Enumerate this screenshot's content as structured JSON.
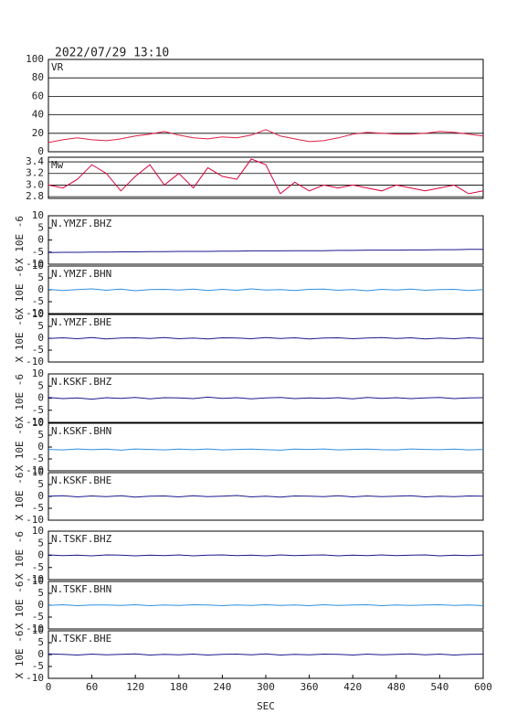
{
  "chart_data": [
    {
      "type": "line",
      "title": "2022/07/29 13:10",
      "label": "VR",
      "color": "#e0204a",
      "grid": true,
      "xlim": [
        0,
        600
      ],
      "ylim": [
        0,
        100
      ],
      "yticks": [
        0,
        20,
        40,
        60,
        80,
        100
      ],
      "x": [
        0,
        20,
        40,
        60,
        80,
        100,
        120,
        140,
        160,
        180,
        200,
        220,
        240,
        260,
        280,
        300,
        320,
        340,
        360,
        380,
        400,
        420,
        440,
        460,
        480,
        500,
        520,
        540,
        560,
        580,
        600
      ],
      "values": [
        10,
        13,
        15,
        13,
        12,
        14,
        17,
        19,
        22,
        18,
        15,
        14,
        16,
        15,
        18,
        24,
        17,
        14,
        11,
        12,
        15,
        19,
        21,
        20,
        19,
        19,
        20,
        22,
        21,
        19,
        17
      ]
    },
    {
      "type": "line",
      "label": "Mw",
      "color": "#d8003c",
      "grid": true,
      "xlim": [
        0,
        600
      ],
      "ylim": [
        2.77,
        3.48
      ],
      "yticks": [
        2.8,
        {
          "value": 3,
          "label": "3.0"
        },
        3.2,
        3.4
      ],
      "x": [
        0,
        20,
        40,
        60,
        80,
        100,
        120,
        140,
        160,
        180,
        200,
        220,
        240,
        260,
        280,
        300,
        320,
        340,
        360,
        380,
        400,
        420,
        440,
        460,
        480,
        500,
        520,
        540,
        560,
        580,
        600
      ],
      "values": [
        3.0,
        2.95,
        3.1,
        3.35,
        3.2,
        2.9,
        3.15,
        3.35,
        3.0,
        3.2,
        2.95,
        3.3,
        3.15,
        3.1,
        3.45,
        3.35,
        2.85,
        3.05,
        2.9,
        3.0,
        2.95,
        3.0,
        2.95,
        2.9,
        3.0,
        2.95,
        2.9,
        2.95,
        3.0,
        2.85,
        2.9
      ]
    },
    {
      "type": "line",
      "label": "N.YMZF.BHZ",
      "ylabel": "X 10E -6",
      "color": "#1a1a8c",
      "grid": false,
      "xlim": [
        0,
        600
      ],
      "ylim": [
        -10,
        10
      ],
      "yticks": [
        -10,
        -5,
        0,
        5,
        10
      ],
      "x": [
        0,
        20,
        40,
        60,
        80,
        100,
        120,
        140,
        160,
        180,
        200,
        220,
        240,
        260,
        280,
        300,
        320,
        340,
        360,
        380,
        400,
        420,
        440,
        460,
        480,
        500,
        520,
        540,
        560,
        580,
        600
      ],
      "values": [
        -5.2,
        -5.1,
        -5.1,
        -5.0,
        -5.0,
        -4.9,
        -4.9,
        -4.8,
        -4.8,
        -4.7,
        -4.7,
        -4.7,
        -4.6,
        -4.6,
        -4.5,
        -4.5,
        -4.5,
        -4.4,
        -4.4,
        -4.4,
        -4.3,
        -4.3,
        -4.2,
        -4.2,
        -4.2,
        -4.1,
        -4.1,
        -4.0,
        -4.0,
        -3.9,
        -3.9
      ]
    },
    {
      "type": "line",
      "label": "N.YMZF.BHN",
      "ylabel": "X 10E -6",
      "color": "#3090e0",
      "grid": false,
      "xlim": [
        0,
        600
      ],
      "ylim": [
        -10,
        10
      ],
      "yticks": [
        -10,
        -5,
        0,
        5,
        10
      ],
      "x": [
        0,
        20,
        40,
        60,
        80,
        100,
        120,
        140,
        160,
        180,
        200,
        220,
        240,
        260,
        280,
        300,
        320,
        340,
        360,
        380,
        400,
        420,
        440,
        460,
        480,
        500,
        520,
        540,
        560,
        580,
        600
      ],
      "values": [
        0.2,
        -0.3,
        0.1,
        0.4,
        -0.2,
        0.3,
        -0.4,
        0.1,
        0.2,
        -0.1,
        0.3,
        -0.3,
        0.2,
        -0.2,
        0.4,
        -0.1,
        0.1,
        -0.3,
        0.2,
        0.3,
        -0.2,
        0.1,
        -0.4,
        0.2,
        -0.1,
        0.3,
        -0.2,
        0.1,
        0.2,
        -0.3,
        0.1
      ]
    },
    {
      "type": "line",
      "label": "N.YMZF.BHE",
      "ylabel": "X 10E -6",
      "color": "#1a1a8c",
      "grid": false,
      "xlim": [
        0,
        600
      ],
      "ylim": [
        -10,
        10
      ],
      "yticks": [
        -10,
        -5,
        0,
        5,
        10
      ],
      "x": [
        0,
        20,
        40,
        60,
        80,
        100,
        120,
        140,
        160,
        180,
        200,
        220,
        240,
        260,
        280,
        300,
        320,
        340,
        360,
        380,
        400,
        420,
        440,
        460,
        480,
        500,
        520,
        540,
        560,
        580,
        600
      ],
      "values": [
        -0.1,
        0.2,
        -0.2,
        0.3,
        -0.3,
        0.1,
        0.2,
        -0.1,
        0.3,
        -0.2,
        0.1,
        -0.3,
        0.2,
        0.1,
        -0.2,
        0.3,
        -0.1,
        0.2,
        -0.3,
        0.1,
        0.2,
        -0.2,
        0.1,
        0.3,
        -0.1,
        0.2,
        -0.3,
        0.1,
        -0.2,
        0.2,
        -0.1
      ]
    },
    {
      "type": "line",
      "label": "N.KSKF.BHZ",
      "ylabel": "X 10E -6",
      "color": "#1a1a8c",
      "grid": false,
      "xlim": [
        0,
        600
      ],
      "ylim": [
        -10,
        10
      ],
      "yticks": [
        -10,
        -5,
        0,
        5,
        10
      ],
      "x": [
        0,
        20,
        40,
        60,
        80,
        100,
        120,
        140,
        160,
        180,
        200,
        220,
        240,
        260,
        280,
        300,
        320,
        340,
        360,
        380,
        400,
        420,
        440,
        460,
        480,
        500,
        520,
        540,
        560,
        580,
        600
      ],
      "values": [
        0.3,
        -0.2,
        0.1,
        -0.4,
        0.2,
        -0.1,
        0.3,
        -0.3,
        0.2,
        0.1,
        -0.2,
        0.4,
        -0.1,
        0.2,
        -0.3,
        0.1,
        0.3,
        -0.2,
        0.1,
        -0.1,
        0.2,
        -0.3,
        0.3,
        -0.1,
        0.2,
        -0.2,
        0.1,
        0.3,
        -0.2,
        0.1,
        0.2
      ]
    },
    {
      "type": "line",
      "label": "N.KSKF.BHN",
      "ylabel": "X 10E -6",
      "color": "#3090e0",
      "grid": false,
      "xlim": [
        0,
        600
      ],
      "ylim": [
        -10,
        10
      ],
      "yticks": [
        -10,
        -5,
        0,
        5,
        10
      ],
      "x": [
        0,
        20,
        40,
        60,
        80,
        100,
        120,
        140,
        160,
        180,
        200,
        220,
        240,
        260,
        280,
        300,
        320,
        340,
        360,
        380,
        400,
        420,
        440,
        460,
        480,
        500,
        520,
        540,
        560,
        580,
        600
      ],
      "values": [
        -1.0,
        -1.2,
        -0.8,
        -1.1,
        -0.9,
        -1.3,
        -0.8,
        -1.0,
        -1.2,
        -0.9,
        -1.1,
        -0.8,
        -1.2,
        -1.0,
        -0.9,
        -1.1,
        -1.3,
        -0.9,
        -1.0,
        -0.8,
        -1.2,
        -1.0,
        -0.9,
        -1.1,
        -1.2,
        -0.8,
        -1.0,
        -1.1,
        -0.9,
        -1.2,
        -1.0
      ]
    },
    {
      "type": "line",
      "label": "N.KSKF.BHE",
      "ylabel": "X 10E -6",
      "color": "#1a1a8c",
      "grid": false,
      "xlim": [
        0,
        600
      ],
      "ylim": [
        -10,
        10
      ],
      "yticks": [
        -10,
        -5,
        0,
        5,
        10
      ],
      "x": [
        0,
        20,
        40,
        60,
        80,
        100,
        120,
        140,
        160,
        180,
        200,
        220,
        240,
        260,
        280,
        300,
        320,
        340,
        360,
        380,
        400,
        420,
        440,
        460,
        480,
        500,
        520,
        540,
        560,
        580,
        600
      ],
      "values": [
        0.1,
        0.3,
        -0.2,
        0.2,
        -0.1,
        0.3,
        -0.3,
        0.1,
        0.2,
        -0.2,
        0.3,
        -0.1,
        0.1,
        0.4,
        -0.2,
        0.1,
        -0.3,
        0.2,
        0.1,
        -0.1,
        0.3,
        -0.2,
        0.2,
        -0.1,
        0.1,
        0.3,
        -0.2,
        0.1,
        -0.1,
        0.2,
        0.1
      ]
    },
    {
      "type": "line",
      "label": "N.TSKF.BHZ",
      "ylabel": "X 10E -6",
      "color": "#1a1a8c",
      "grid": false,
      "xlim": [
        0,
        600
      ],
      "ylim": [
        -10,
        10
      ],
      "yticks": [
        -10,
        -5,
        0,
        5,
        10
      ],
      "x": [
        0,
        20,
        40,
        60,
        80,
        100,
        120,
        140,
        160,
        180,
        200,
        220,
        240,
        260,
        280,
        300,
        320,
        340,
        360,
        380,
        400,
        420,
        440,
        460,
        480,
        500,
        520,
        540,
        560,
        580,
        600
      ],
      "values": [
        0.2,
        -0.1,
        0.1,
        -0.2,
        0.2,
        0.1,
        -0.2,
        0.1,
        -0.1,
        0.2,
        -0.2,
        0.1,
        0.2,
        -0.1,
        0.1,
        -0.2,
        0.2,
        -0.1,
        0.1,
        0.2,
        -0.2,
        0.1,
        -0.1,
        0.2,
        -0.1,
        0.1,
        0.2,
        -0.2,
        0.1,
        -0.1,
        0.2
      ]
    },
    {
      "type": "line",
      "label": "N.TSKF.BHN",
      "ylabel": "X 10E -6",
      "color": "#3090e0",
      "grid": false,
      "xlim": [
        0,
        600
      ],
      "ylim": [
        -10,
        10
      ],
      "yticks": [
        -10,
        -5,
        0,
        5,
        10
      ],
      "x": [
        0,
        20,
        40,
        60,
        80,
        100,
        120,
        140,
        160,
        180,
        200,
        220,
        240,
        260,
        280,
        300,
        320,
        340,
        360,
        380,
        400,
        420,
        440,
        460,
        480,
        500,
        520,
        540,
        560,
        580,
        600
      ],
      "values": [
        -0.1,
        0.2,
        -0.2,
        0.1,
        0.1,
        -0.1,
        0.2,
        -0.2,
        0.1,
        -0.1,
        0.2,
        0.1,
        -0.2,
        0.1,
        -0.1,
        0.2,
        -0.1,
        0.1,
        -0.2,
        0.2,
        -0.1,
        0.1,
        0.2,
        -0.2,
        0.1,
        -0.1,
        0.1,
        0.2,
        -0.1,
        0.1,
        -0.2
      ]
    },
    {
      "type": "line",
      "label": "N.TSKF.BHE",
      "ylabel": "X 10E -6",
      "xlabel": "SEC",
      "color": "#1a1a8c",
      "grid": false,
      "xlim": [
        0,
        600
      ],
      "ylim": [
        -10,
        10
      ],
      "yticks": [
        -10,
        -5,
        0,
        5,
        10
      ],
      "xticks": [
        0,
        60,
        120,
        180,
        240,
        300,
        360,
        420,
        480,
        540,
        600
      ],
      "x": [
        0,
        20,
        40,
        60,
        80,
        100,
        120,
        140,
        160,
        180,
        200,
        220,
        240,
        260,
        280,
        300,
        320,
        340,
        360,
        380,
        400,
        420,
        440,
        460,
        480,
        500,
        520,
        540,
        560,
        580,
        600
      ],
      "values": [
        0.3,
        0.1,
        -0.2,
        0.2,
        -0.1,
        0.1,
        0.3,
        -0.2,
        0.1,
        -0.1,
        0.2,
        -0.2,
        0.1,
        0.2,
        -0.1,
        0.3,
        -0.2,
        0.1,
        -0.1,
        0.2,
        0.1,
        -0.2,
        0.2,
        -0.1,
        0.1,
        0.3,
        -0.1,
        0.2,
        -0.2,
        0.1,
        0.2
      ]
    }
  ]
}
